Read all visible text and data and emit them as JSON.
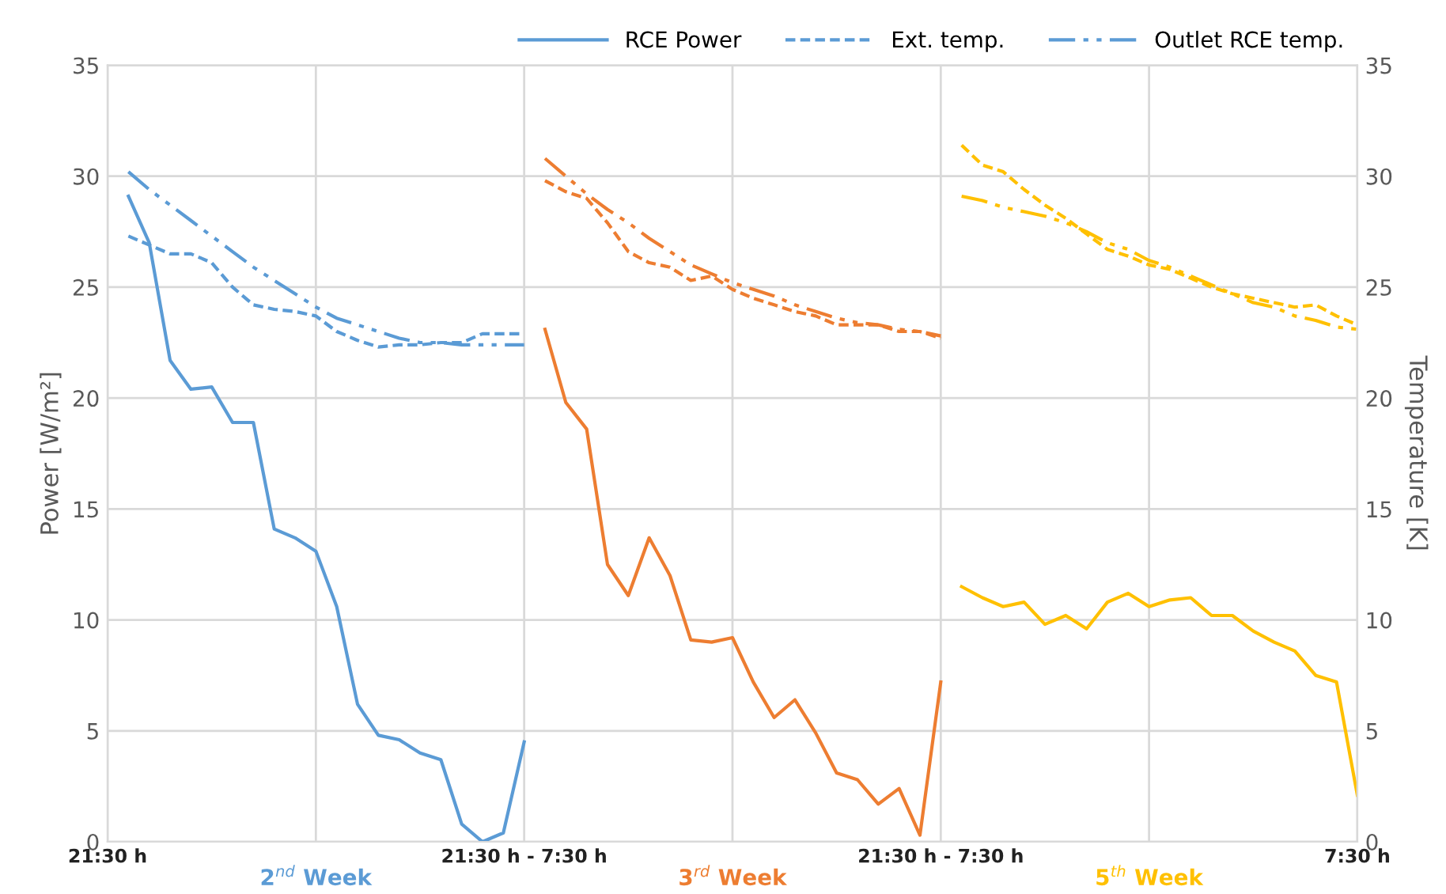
{
  "chart_data": {
    "type": "line",
    "ylabel": "Power [W/m²]",
    "y2label": "Temperature [K]",
    "categories": [
      "21:30 h",
      null,
      null,
      null,
      null,
      null,
      null,
      null,
      null,
      null,
      null,
      null,
      null,
      null,
      null,
      null,
      null,
      null,
      null,
      null,
      "21:30 h - 7:30 h",
      null,
      null,
      null,
      null,
      null,
      null,
      null,
      null,
      null,
      null,
      null,
      null,
      null,
      null,
      null,
      null,
      null,
      null,
      null,
      "21:30 h - 7:30 h",
      null,
      null,
      null,
      null,
      null,
      null,
      null,
      null,
      null,
      null,
      null,
      null,
      null,
      null,
      null,
      null,
      null,
      null,
      null,
      "7:30 h"
    ],
    "ylim": [
      0,
      35
    ],
    "yticks": [
      0,
      5,
      10,
      15,
      20,
      25,
      30,
      35
    ],
    "y2lim": [
      0,
      35
    ],
    "y2ticks": [
      0,
      5,
      10,
      15,
      20,
      25,
      30,
      35
    ],
    "grid": true,
    "legend": "top right",
    "marker": "none",
    "annotations": [
      "2$^{nd}$ Week",
      "3$^{rd}$ Week",
      "5$^{th}$ Week"
    ],
    "series": [
      {
        "name": "RCE Power",
        "color": "#5b9bd5",
        "line_style": "solid",
        "values": [
          null,
          29.1,
          27.0,
          21.7,
          20.4,
          20.5,
          18.9,
          18.9,
          14.1,
          13.7,
          13.1,
          10.6,
          6.2,
          4.8,
          4.6,
          4.0,
          3.7,
          0.8,
          0,
          0.4,
          4.5,
          null,
          null,
          null,
          null,
          null,
          null,
          null,
          null,
          null,
          null,
          null,
          null,
          null,
          null,
          null,
          null,
          null,
          null,
          null,
          null,
          null,
          null,
          null,
          null,
          null,
          null,
          null,
          null,
          null,
          null,
          null,
          null,
          null,
          null,
          null,
          null,
          null,
          null,
          null,
          null
        ]
      },
      {
        "name": "Ext. temp.",
        "color": "#5b9bd5",
        "line_style": "dashed",
        "axis": "y2",
        "values": [
          null,
          27.3,
          26.9,
          26.5,
          26.5,
          26.1,
          25.0,
          24.2,
          24.0,
          23.9,
          23.7,
          23.0,
          22.6,
          22.3,
          22.4,
          22.4,
          22.5,
          22.5,
          22.9,
          22.9,
          22.9,
          null,
          null,
          null,
          null,
          null,
          null,
          null,
          null,
          null,
          null,
          null,
          null,
          null,
          null,
          null,
          null,
          null,
          null,
          null,
          null,
          null,
          null,
          null,
          null,
          null,
          null,
          null,
          null,
          null,
          null,
          null,
          null,
          null,
          null,
          null,
          null,
          null,
          null,
          null,
          null
        ]
      },
      {
        "name": "Outlet RCE temp.",
        "color": "#5b9bd5",
        "line_style": "dashdot",
        "axis": "y2",
        "values": [
          null,
          30.2,
          29.4,
          28.7,
          28.0,
          27.3,
          26.6,
          25.9,
          25.3,
          24.7,
          24.1,
          23.6,
          23.3,
          23.0,
          22.7,
          22.5,
          22.5,
          22.4,
          22.4,
          22.4,
          22.4,
          null,
          null,
          null,
          null,
          null,
          null,
          null,
          null,
          null,
          null,
          null,
          null,
          null,
          null,
          null,
          null,
          null,
          null,
          null,
          null,
          null,
          null,
          null,
          null,
          null,
          null,
          null,
          null,
          null,
          null,
          null,
          null,
          null,
          null,
          null,
          null,
          null,
          null,
          null,
          null
        ]
      },
      {
        "color": "#ed7d31",
        "line_style": "solid",
        "values": [
          null,
          null,
          null,
          null,
          null,
          null,
          null,
          null,
          null,
          null,
          null,
          null,
          null,
          null,
          null,
          null,
          null,
          null,
          null,
          null,
          null,
          23.1,
          19.8,
          18.6,
          12.5,
          11.1,
          13.7,
          12.0,
          9.1,
          9.0,
          9.2,
          7.2,
          5.6,
          6.4,
          4.9,
          3.1,
          2.8,
          1.7,
          2.4,
          0.3,
          7.2,
          null,
          null,
          null,
          null,
          null,
          null,
          null,
          null,
          null,
          null,
          null,
          null,
          null,
          null,
          null,
          null,
          null,
          null,
          null,
          null
        ]
      },
      {
        "color": "#ed7d31",
        "line_style": "dashed",
        "axis": "y2",
        "values": [
          null,
          null,
          null,
          null,
          null,
          null,
          null,
          null,
          null,
          null,
          null,
          null,
          null,
          null,
          null,
          null,
          null,
          null,
          null,
          null,
          null,
          29.8,
          29.3,
          29.0,
          27.9,
          26.6,
          26.1,
          25.9,
          25.3,
          25.5,
          24.9,
          24.5,
          24.2,
          23.9,
          23.7,
          23.3,
          23.3,
          23.3,
          23.0,
          23.0,
          22.7,
          null,
          null,
          null,
          null,
          null,
          null,
          null,
          null,
          null,
          null,
          null,
          null,
          null,
          null,
          null,
          null,
          null,
          null,
          null,
          null
        ]
      },
      {
        "color": "#ed7d31",
        "line_style": "dashdot",
        "axis": "y2",
        "values": [
          null,
          null,
          null,
          null,
          null,
          null,
          null,
          null,
          null,
          null,
          null,
          null,
          null,
          null,
          null,
          null,
          null,
          null,
          null,
          null,
          null,
          30.8,
          30.0,
          29.2,
          28.5,
          27.9,
          27.2,
          26.6,
          26.0,
          25.6,
          25.2,
          24.9,
          24.6,
          24.2,
          23.9,
          23.6,
          23.4,
          23.3,
          23.1,
          23.0,
          22.8,
          null,
          null,
          null,
          null,
          null,
          null,
          null,
          null,
          null,
          null,
          null,
          null,
          null,
          null,
          null,
          null,
          null,
          null,
          null,
          null
        ]
      },
      {
        "color": "#ffc000",
        "line_style": "solid",
        "values": [
          null,
          null,
          null,
          null,
          null,
          null,
          null,
          null,
          null,
          null,
          null,
          null,
          null,
          null,
          null,
          null,
          null,
          null,
          null,
          null,
          null,
          null,
          null,
          null,
          null,
          null,
          null,
          null,
          null,
          null,
          null,
          null,
          null,
          null,
          null,
          null,
          null,
          null,
          null,
          null,
          null,
          11.5,
          11.0,
          10.6,
          10.8,
          9.8,
          10.2,
          9.6,
          10.8,
          11.2,
          10.6,
          10.9,
          11.0,
          10.2,
          10.2,
          9.5,
          9.0,
          8.6,
          7.5,
          7.2,
          2.1
        ]
      },
      {
        "color": "#ffc000",
        "line_style": "dashed",
        "axis": "y2",
        "values": [
          null,
          null,
          null,
          null,
          null,
          null,
          null,
          null,
          null,
          null,
          null,
          null,
          null,
          null,
          null,
          null,
          null,
          null,
          null,
          null,
          null,
          null,
          null,
          null,
          null,
          null,
          null,
          null,
          null,
          null,
          null,
          null,
          null,
          null,
          null,
          null,
          null,
          null,
          null,
          null,
          null,
          31.4,
          30.5,
          30.2,
          29.4,
          28.7,
          28.1,
          27.4,
          26.7,
          26.4,
          26.0,
          25.8,
          25.4,
          25.0,
          24.7,
          24.5,
          24.3,
          24.1,
          24.2,
          23.7,
          23.3
        ]
      },
      {
        "color": "#ffc000",
        "line_style": "dashdot",
        "axis": "y2",
        "values": [
          null,
          null,
          null,
          null,
          null,
          null,
          null,
          null,
          null,
          null,
          null,
          null,
          null,
          null,
          null,
          null,
          null,
          null,
          null,
          null,
          null,
          null,
          null,
          null,
          null,
          null,
          null,
          null,
          null,
          null,
          null,
          null,
          null,
          null,
          null,
          null,
          null,
          null,
          null,
          null,
          null,
          29.1,
          28.9,
          28.6,
          28.4,
          28.2,
          27.9,
          27.5,
          27.0,
          26.7,
          26.2,
          25.9,
          25.5,
          25.1,
          24.7,
          24.3,
          24.1,
          23.7,
          23.5,
          23.2,
          23.1
        ]
      }
    ]
  }
}
